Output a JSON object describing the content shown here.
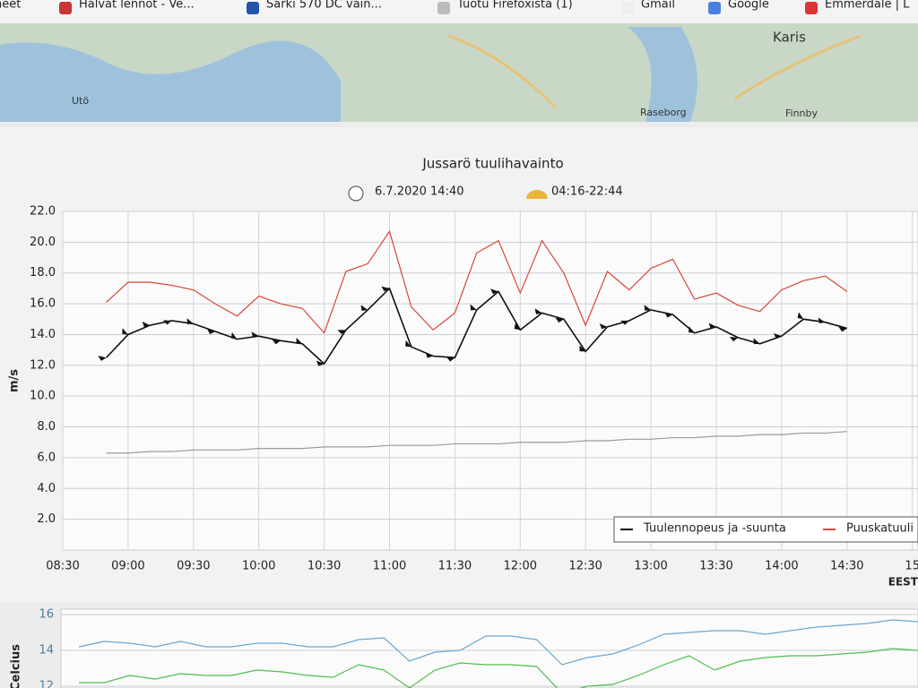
{
  "bookmarks": [
    "neet",
    "Halvat lennot - Ve...",
    "Särki 570 DC vain...",
    "Tuotu Firefoxista (1)",
    "Gmail",
    "Google",
    "Emmerdale | L"
  ],
  "map": {
    "labels": [
      "Karis",
      "Utö",
      "Raseborg",
      "Finnby"
    ]
  },
  "chart_data": [
    {
      "type": "line",
      "title": "Jussarö tuulihavainto",
      "time": "6.7.2020 14:40",
      "sun": "04:16-22:44",
      "ylabel": "m/s",
      "x_unit": "EEST",
      "categories": [
        "08:30",
        null,
        null,
        "09:00",
        null,
        null,
        "09:30",
        null,
        null,
        "10:00",
        null,
        null,
        "10:30",
        null,
        null,
        "11:00",
        null,
        null,
        "11:30",
        null,
        null,
        "12:00",
        null,
        null,
        "12:30",
        null,
        null,
        "13:00",
        null,
        null,
        "13:30",
        null,
        null,
        "14:00",
        null,
        null,
        "14:30",
        null,
        null,
        "15"
      ],
      "ylim": [
        0,
        22
      ],
      "yticks": [
        {
          "value": 2,
          "label": "2.0"
        },
        {
          "value": 4,
          "label": "4.0"
        },
        {
          "value": 6,
          "label": "6.0"
        },
        {
          "value": 8,
          "label": "8.0"
        },
        {
          "value": 10,
          "label": "10.0"
        },
        {
          "value": 12,
          "label": "12.0"
        },
        {
          "value": 14,
          "label": "14.0"
        },
        {
          "value": 16,
          "label": "16.0"
        },
        {
          "value": 18,
          "label": "18.0"
        },
        {
          "value": 20,
          "label": "20.0"
        },
        {
          "value": 22,
          "label": "22.0"
        }
      ],
      "grid": true,
      "series": [
        {
          "name": "Tuulennopeus ja -suunta",
          "color": "#111111",
          "arrows": true,
          "values": [
            null,
            null,
            12.5,
            14.0,
            14.6,
            14.9,
            14.7,
            14.2,
            13.7,
            13.9,
            13.6,
            13.4,
            12.1,
            14.3,
            15.6,
            17.0,
            13.2,
            12.6,
            12.5,
            15.6,
            16.8,
            14.3,
            15.4,
            15.0,
            12.9,
            14.5,
            14.9,
            15.6,
            15.3,
            14.1,
            14.5,
            13.8,
            13.4,
            13.9,
            15.0,
            14.8,
            14.4,
            null,
            null,
            null
          ]
        },
        {
          "name": "Puuskatuuli",
          "color": "#d9453b",
          "values": [
            null,
            null,
            16.1,
            17.4,
            17.4,
            17.2,
            16.9,
            16.0,
            15.2,
            16.5,
            16.0,
            15.7,
            14.1,
            18.1,
            18.6,
            20.7,
            15.8,
            14.3,
            15.4,
            19.3,
            20.1,
            16.7,
            20.1,
            18.0,
            14.6,
            18.1,
            16.9,
            18.3,
            18.9,
            16.3,
            16.7,
            15.9,
            15.5,
            16.9,
            17.5,
            17.8,
            16.8,
            null,
            null,
            null
          ]
        },
        {
          "color": "#9a9a9a",
          "values": [
            null,
            null,
            6.3,
            6.3,
            6.4,
            6.4,
            6.5,
            6.5,
            6.5,
            6.6,
            6.6,
            6.6,
            6.7,
            6.7,
            6.7,
            6.8,
            6.8,
            6.8,
            6.9,
            6.9,
            6.9,
            7.0,
            7.0,
            7.0,
            7.1,
            7.1,
            7.2,
            7.2,
            7.3,
            7.3,
            7.4,
            7.4,
            7.5,
            7.5,
            7.6,
            7.6,
            7.7,
            null,
            null,
            null
          ]
        }
      ]
    },
    {
      "type": "line",
      "ylabel": "Celcius",
      "ylim": [
        11.9,
        16.3
      ],
      "yticks": [
        12,
        14,
        16
      ],
      "grid": true,
      "series": [
        {
          "color": "#6aa7cf",
          "values": [
            14.2,
            14.5,
            14.4,
            14.2,
            14.5,
            14.2,
            14.2,
            14.4,
            14.4,
            14.2,
            14.2,
            14.6,
            14.7,
            13.4,
            13.9,
            14.0,
            14.8,
            14.8,
            14.6,
            13.2,
            13.6,
            13.8,
            14.3,
            14.9,
            15.0,
            15.1,
            15.1,
            14.9,
            15.1,
            15.3,
            15.4,
            15.5,
            15.7,
            15.6
          ]
        },
        {
          "color": "#4cc04c",
          "values": [
            12.2,
            12.2,
            12.6,
            12.4,
            12.7,
            12.6,
            12.6,
            12.9,
            12.8,
            12.6,
            12.5,
            13.2,
            12.9,
            11.9,
            12.9,
            13.3,
            13.2,
            13.2,
            13.1,
            11.6,
            12.0,
            12.1,
            12.6,
            13.2,
            13.7,
            12.9,
            13.4,
            13.6,
            13.7,
            13.7,
            13.8,
            13.9,
            14.1,
            14.0
          ]
        }
      ]
    }
  ]
}
